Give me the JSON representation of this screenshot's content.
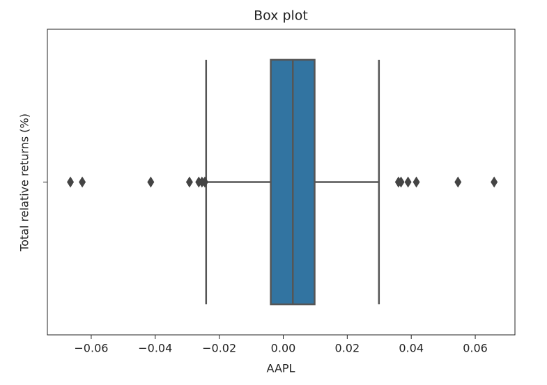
{
  "chart_data": {
    "type": "boxplot",
    "title": "Box plot",
    "xlabel": "AAPL",
    "ylabel": "Total relative returns (%)",
    "categories": [
      null
    ],
    "color": "#3274a1",
    "line_color": "#555555",
    "orientation": "horizontal",
    "boxes": [
      {
        "whislo": -0.0241,
        "q1": -0.0039,
        "med": 0.003,
        "q3": 0.0098,
        "whishi": 0.0299,
        "fliers": [
          -0.0665,
          -0.0628,
          -0.0414,
          -0.0293,
          -0.0264,
          -0.0254,
          -0.0245,
          0.036,
          0.0368,
          0.039,
          0.0416,
          0.0546,
          0.0659
        ]
      }
    ],
    "xlim": [
      -0.0737,
      0.0724
    ],
    "xticks": [
      {
        "value": -0.06,
        "label": "−0.06"
      },
      {
        "value": -0.04,
        "label": "−0.04"
      },
      {
        "value": -0.02,
        "label": "−0.02"
      },
      {
        "value": 0,
        "label": "0.00"
      },
      {
        "value": 0.02,
        "label": "0.02"
      },
      {
        "value": 0.04,
        "label": "0.04"
      },
      {
        "value": 0.06,
        "label": "0.06"
      }
    ],
    "grid": false
  }
}
